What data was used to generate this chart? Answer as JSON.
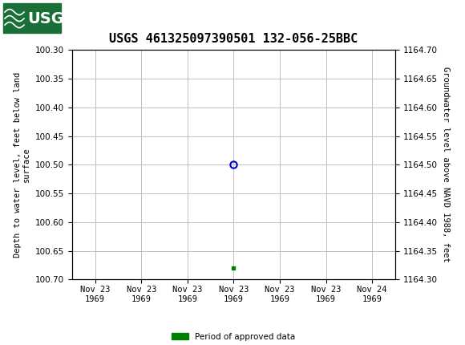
{
  "title": "USGS 461325097390501 132-056-25BBC",
  "ylabel_left": "Depth to water level, feet below land\nsurface",
  "ylabel_right": "Groundwater level above NAVD 1988, feet",
  "ylim_left_top": 100.3,
  "ylim_left_bottom": 100.7,
  "ylim_right_top": 1164.7,
  "ylim_right_bottom": 1164.3,
  "yticks_left": [
    100.3,
    100.35,
    100.4,
    100.45,
    100.5,
    100.55,
    100.6,
    100.65,
    100.7
  ],
  "yticks_right": [
    1164.7,
    1164.65,
    1164.6,
    1164.55,
    1164.5,
    1164.45,
    1164.4,
    1164.35,
    1164.3
  ],
  "data_point_x": 3.0,
  "data_point_y": 100.5,
  "approved_point_x": 3.0,
  "approved_point_y": 100.68,
  "point_color": "#0000cc",
  "approved_color": "#008000",
  "background_color": "#ffffff",
  "plot_bg_color": "#ffffff",
  "grid_color": "#c0c0c0",
  "header_color": "#1a6e37",
  "title_fontsize": 11,
  "tick_fontsize": 7.5,
  "label_fontsize": 7.5,
  "legend_label": "Period of approved data",
  "xtick_labels": [
    "Nov 23\n1969",
    "Nov 23\n1969",
    "Nov 23\n1969",
    "Nov 23\n1969",
    "Nov 23\n1969",
    "Nov 23\n1969",
    "Nov 24\n1969"
  ],
  "xtick_positions": [
    0.0,
    1.0,
    2.0,
    3.0,
    4.0,
    5.0,
    6.0
  ],
  "xlim": [
    -0.5,
    6.5
  ]
}
